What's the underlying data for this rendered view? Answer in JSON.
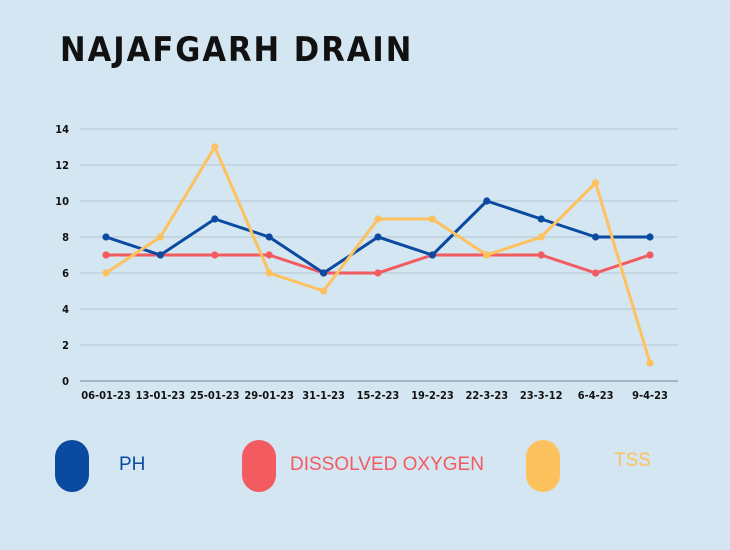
{
  "chart_data": {
    "type": "line",
    "title": "NAJAFGARH DRAIN",
    "categories": [
      "06-01-23",
      "13-01-23",
      "25-01-23",
      "29-01-23",
      "31-1-23",
      "15-2-23",
      "19-2-23",
      "22-3-23",
      "23-3-12",
      "6-4-23",
      "9-4-23"
    ],
    "series": [
      {
        "name": "PH",
        "color": "#0a4ba1",
        "values": [
          8,
          7,
          9,
          8,
          6,
          8,
          7,
          10,
          9,
          8,
          8
        ]
      },
      {
        "name": "DISSOLVED OXYGEN",
        "color": "#f25b60",
        "values": [
          7,
          7,
          7,
          7,
          6,
          6,
          7,
          7,
          7,
          6,
          7
        ]
      },
      {
        "name": "TSS",
        "color": "#fdc15e",
        "values": [
          6,
          8,
          13,
          6,
          5,
          9,
          9,
          7,
          8,
          11,
          1
        ]
      }
    ],
    "yticks": [
      0,
      2,
      4,
      6,
      8,
      10,
      12,
      14
    ],
    "ylim": [
      0,
      14
    ],
    "grid": true,
    "legend_position": "bottom"
  }
}
